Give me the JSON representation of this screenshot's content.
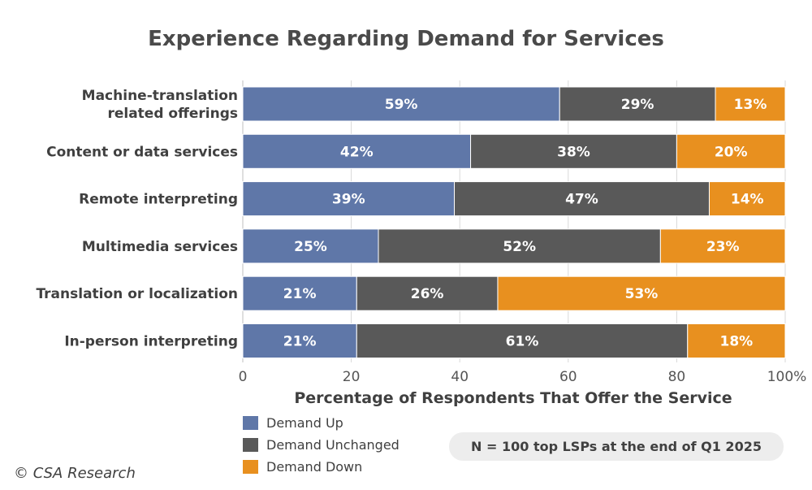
{
  "chart_data": {
    "type": "bar",
    "orientation": "horizontal",
    "stacked": true,
    "title": "Experience Regarding Demand for Services",
    "xlabel": "Percentage of Respondents That Offer the Service",
    "xlim": [
      0,
      100
    ],
    "ticks": [
      "0",
      "20",
      "40",
      "60",
      "80",
      "100%"
    ],
    "tick_values": [
      0,
      20,
      40,
      60,
      80,
      100
    ],
    "grid": true,
    "legend_position": "bottom-left",
    "categories": [
      [
        "Machine-translation",
        "related offerings"
      ],
      [
        "Content or data services"
      ],
      [
        "Remote interpreting"
      ],
      [
        "Multimedia services"
      ],
      [
        "Translation or localization"
      ],
      [
        "In-person interpreting"
      ]
    ],
    "series": [
      {
        "name": "Demand Up",
        "color": "#5f77a8",
        "values": [
          59,
          42,
          39,
          25,
          21,
          21
        ],
        "labels": [
          "59%",
          "42%",
          "39%",
          "25%",
          "21%",
          "21%"
        ]
      },
      {
        "name": "Demand Unchanged",
        "color": "#595959",
        "values": [
          29,
          38,
          47,
          52,
          26,
          61
        ],
        "labels": [
          "29%",
          "38%",
          "47%",
          "52%",
          "26%",
          "61%"
        ]
      },
      {
        "name": "Demand Down",
        "color": "#e8901f",
        "values": [
          13,
          20,
          14,
          23,
          53,
          18
        ],
        "labels": [
          "13%",
          "20%",
          "14%",
          "23%",
          "53%",
          "18%"
        ]
      }
    ]
  },
  "note": "N = 100 top LSPs at the end of Q1 2025",
  "copyright": "© CSA Research"
}
